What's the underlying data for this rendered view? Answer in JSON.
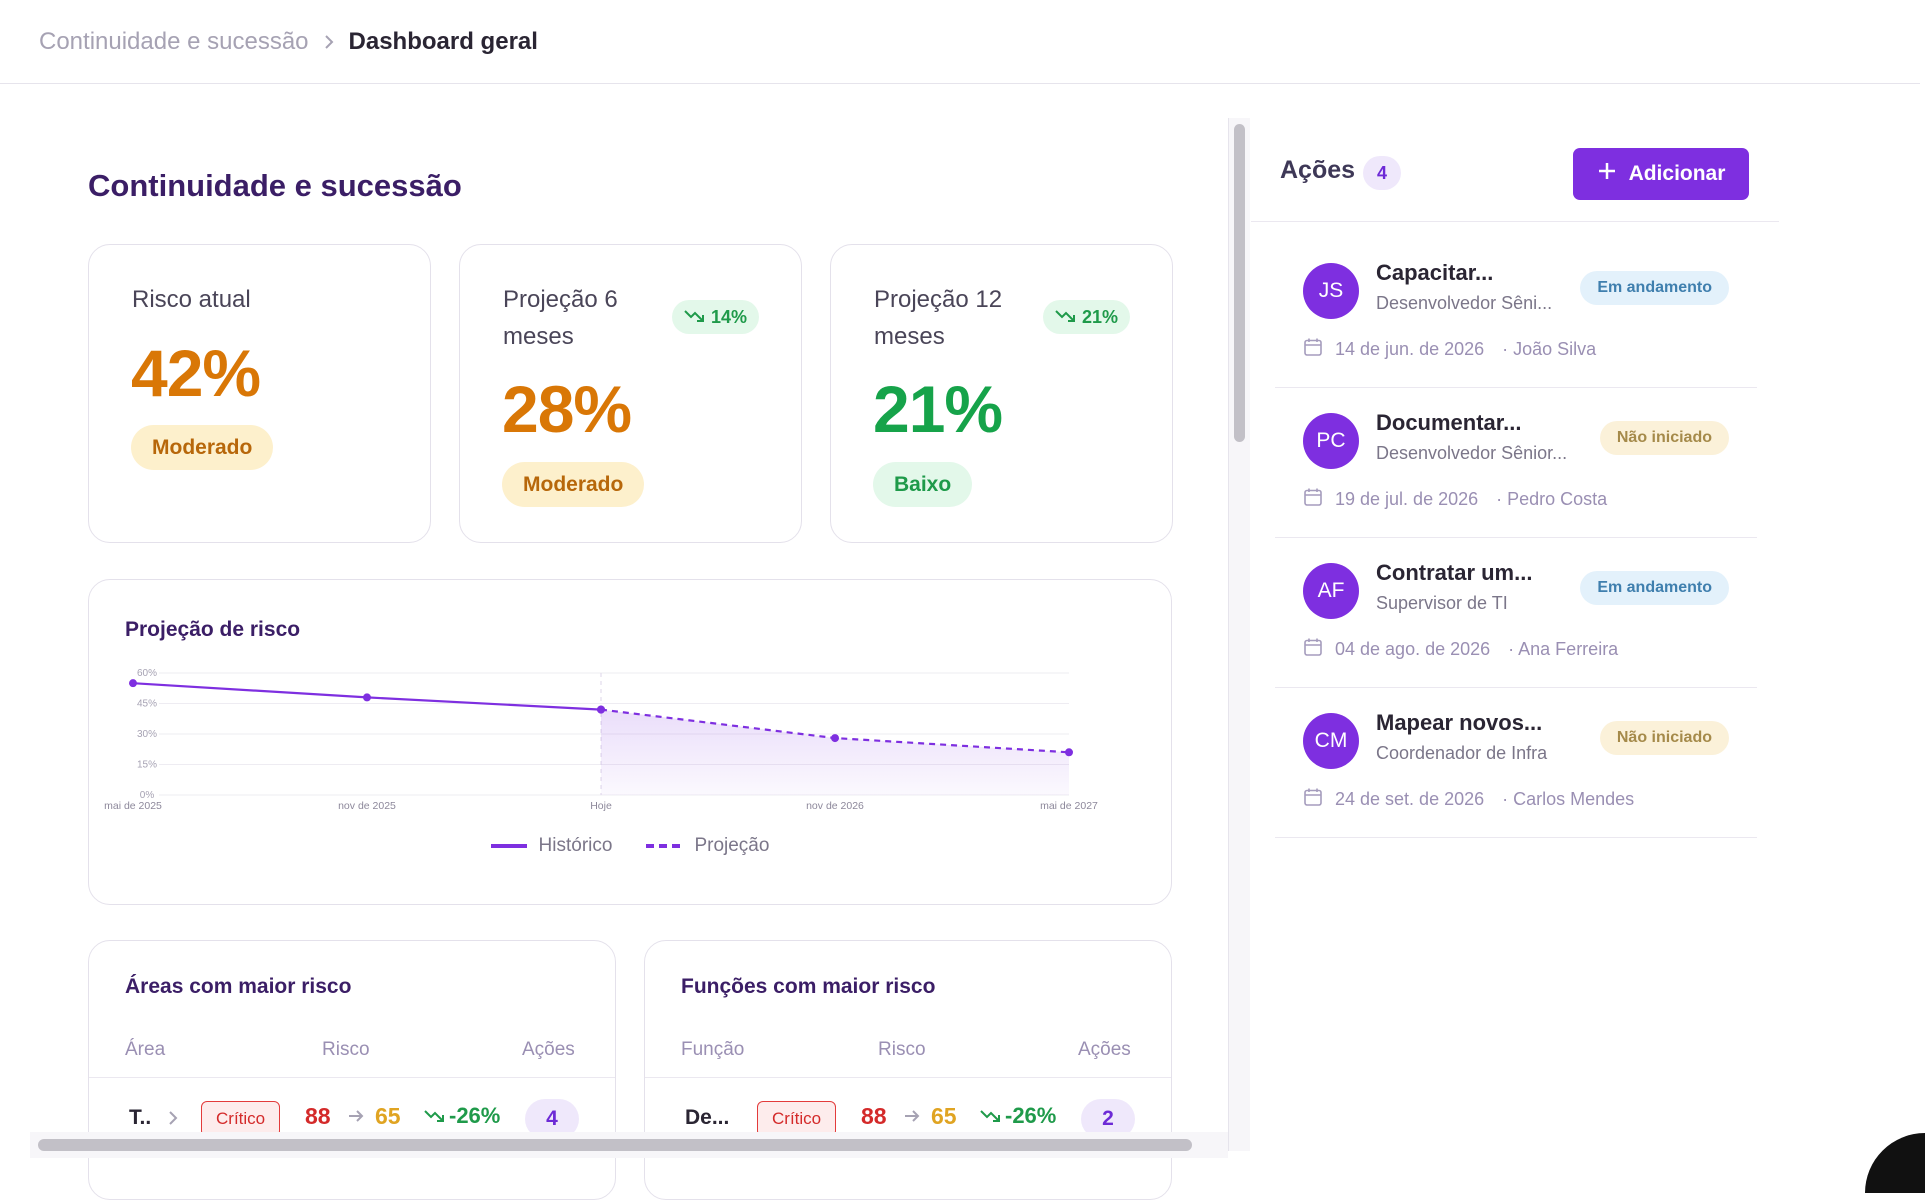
{
  "breadcrumb": {
    "parent": "Continuidade e sucessão",
    "current": "Dashboard geral"
  },
  "page": {
    "title": "Continuidade e sucessão"
  },
  "kpis": [
    {
      "title": "Risco atual",
      "value": "42%",
      "level": "Moderado",
      "trend": ""
    },
    {
      "title": "Projeção 6 meses",
      "value": "28%",
      "level": "Moderado",
      "trend": "14%"
    },
    {
      "title": "Projeção 12 meses",
      "value": "21%",
      "level": "Baixo",
      "trend": "21%"
    }
  ],
  "chart_data": {
    "type": "line",
    "title": "Projeção de risco",
    "x": [
      "mai de 2025",
      "nov de 2025",
      "Hoje",
      "nov de 2026",
      "mai de 2027"
    ],
    "series": [
      {
        "name": "Histórico",
        "style": "solid",
        "values": [
          55,
          48,
          42,
          null,
          null
        ]
      },
      {
        "name": "Projeção",
        "style": "dashed",
        "values": [
          null,
          null,
          42,
          28,
          21
        ]
      }
    ],
    "y_ticks": [
      "60%",
      "45%",
      "30%",
      "15%",
      "0%"
    ],
    "ylim": [
      0,
      60
    ],
    "grid": true,
    "legend": "bottom-center",
    "colors": {
      "line": "#7e2fe0"
    }
  },
  "areas_table": {
    "title": "Áreas com maior risco",
    "headers": [
      "Área",
      "Risco",
      "Ações"
    ],
    "rows": [
      {
        "name": "T..",
        "level": "Crítico",
        "from": "88",
        "to": "65",
        "delta": "-26%",
        "actions": "4"
      }
    ]
  },
  "functions_table": {
    "title": "Funções com maior risco",
    "headers": [
      "Função",
      "Risco",
      "Ações"
    ],
    "rows": [
      {
        "name": "De...",
        "level": "Crítico",
        "from": "88",
        "to": "65",
        "delta": "-26%",
        "actions": "2"
      }
    ]
  },
  "actions_panel": {
    "title": "Ações",
    "count": "4",
    "add_label": "Adicionar",
    "items": [
      {
        "initials": "JS",
        "title": "Capacitar...",
        "role": "Desenvolvedor Sêni...",
        "status": "Em andamento",
        "status_type": "in-progress",
        "date": "14 de jun. de 2026",
        "owner": "· João Silva"
      },
      {
        "initials": "PC",
        "title": "Documentar...",
        "role": "Desenvolvedor Sênior...",
        "status": "Não iniciado",
        "status_type": "not-started",
        "date": "19 de jul. de 2026",
        "owner": "· Pedro Costa"
      },
      {
        "initials": "AF",
        "title": "Contratar um...",
        "role": "Supervisor de TI",
        "status": "Em andamento",
        "status_type": "in-progress",
        "date": "04 de ago. de 2026",
        "owner": "· Ana Ferreira"
      },
      {
        "initials": "CM",
        "title": "Mapear novos...",
        "role": "Coordenador de Infra",
        "status": "Não iniciado",
        "status_type": "not-started",
        "date": "24 de set. de 2026",
        "owner": "· Carlos Mendes"
      }
    ]
  },
  "colors": {
    "accent": "#7e2fe0",
    "moderate": "#d97706",
    "low": "#16a34a",
    "critical": "#d42a2a"
  }
}
